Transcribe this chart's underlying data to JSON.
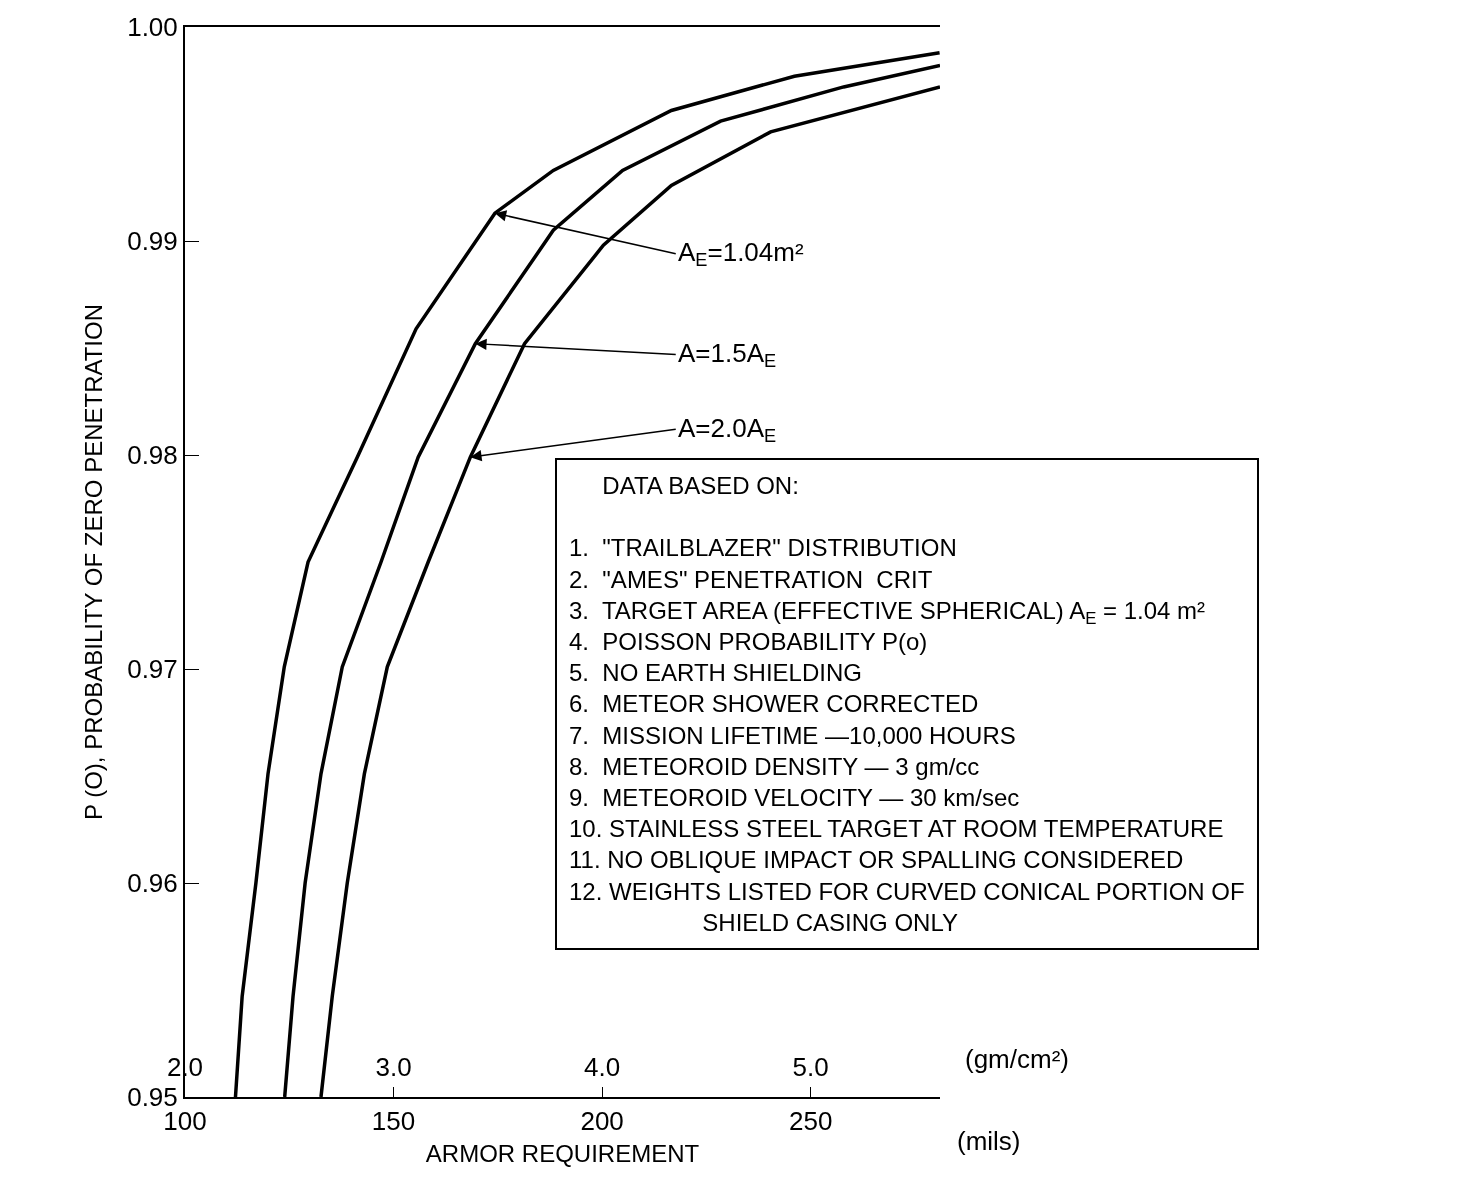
{
  "chart_data": {
    "type": "line",
    "xlabel": "ARMOR REQUIREMENT",
    "ylabel": "P (O), PROBABILITY OF ZERO PENETRATION",
    "x2label": "(gm/cm²)",
    "xlim": [
      100,
      281
    ],
    "xticks": [
      100,
      150,
      200,
      250
    ],
    "ylim": [
      0.95,
      1.0
    ],
    "yticks": [
      {
        "value": 0.95,
        "label": "0.95"
      },
      {
        "value": 0.96,
        "label": "0.96"
      },
      {
        "value": 0.97,
        "label": "0.97"
      },
      {
        "value": 0.98,
        "label": "0.98"
      },
      {
        "value": 0.99,
        "label": "0.99"
      },
      {
        "value": 1.0,
        "label": "1.00"
      }
    ],
    "x2lim": [
      2.0,
      5.62
    ],
    "x2ticks": [
      {
        "value": 2,
        "label": "2.0"
      },
      {
        "value": 3,
        "label": "3.0"
      },
      {
        "value": 4,
        "label": "4.0"
      },
      {
        "value": 5,
        "label": "5.0"
      }
    ],
    "marker": "none",
    "line_style": "solid",
    "series": [
      {
        "color": "#000000",
        "x": [
          112.1,
          113.7,
          117.0,
          119.9,
          123.8,
          129.5,
          141.3,
          155.4,
          174.3,
          188.3,
          216.6,
          246.1,
          280.9
        ],
        "values": [
          0.95,
          0.9547,
          0.96,
          0.9651,
          0.9701,
          0.975,
          0.9799,
          0.9859,
          0.9913,
          0.9933,
          0.9961,
          0.9977,
          0.9988
        ]
      },
      {
        "color": "#000000",
        "x": [
          123.9,
          125.9,
          128.8,
          132.6,
          137.7,
          147.0,
          155.9,
          169.6,
          188.3,
          204.9,
          228.4,
          257.9,
          281.0
        ],
        "values": [
          0.95,
          0.9547,
          0.96,
          0.9651,
          0.9701,
          0.975,
          0.9799,
          0.9852,
          0.9905,
          0.9933,
          0.9956,
          0.9972,
          0.9982
        ]
      },
      {
        "color": "#000000",
        "x": [
          132.6,
          135.3,
          138.9,
          143.0,
          148.5,
          158.3,
          168.4,
          181.4,
          200.3,
          216.6,
          240.4,
          281.0
        ],
        "values": [
          0.95,
          0.9547,
          0.96,
          0.9651,
          0.9701,
          0.975,
          0.9799,
          0.9852,
          0.9898,
          0.9926,
          0.9951,
          0.9972
        ]
      }
    ],
    "annotations": [
      {
        "text": "A$_{E}$=1.04m²",
        "x": 174.3,
        "y": 0.9913
      },
      {
        "text": "A=1.5A$_{E}$",
        "x": 169.6,
        "y": 0.9852
      },
      {
        "text": "A=2.0A$_{E}$",
        "x": 168.4,
        "y": 0.9799
      },
      "(mils)",
      "     DATA BASED ON:\n\n1.  \"TRAILBLAZER\" DISTRIBUTION\n2.  \"AMES\" PENETRATION  CRIT\n3.  TARGET AREA (EFFECTIVE SPHERICAL) A$_{E}$ = 1.04 m²\n4.  POISSON PROBABILITY P(o)\n5.  NO EARTH SHIELDING\n6.  METEOR SHOWER CORRECTED\n7.  MISSION LIFETIME —10,000 HOURS\n8.  METEOROID DENSITY — 3 gm/cc\n9.  METEOROID VELOCITY — 30 km/sec\n10. STAINLESS STEEL TARGET AT ROOM TEMPERATURE\n11. NO OBLIQUE IMPACT OR SPALLING CONSIDERED\n12. WEIGHTS LISTED FOR CURVED CONICAL PORTION OF\n                    SHIELD CASING ONLY"
    ]
  }
}
